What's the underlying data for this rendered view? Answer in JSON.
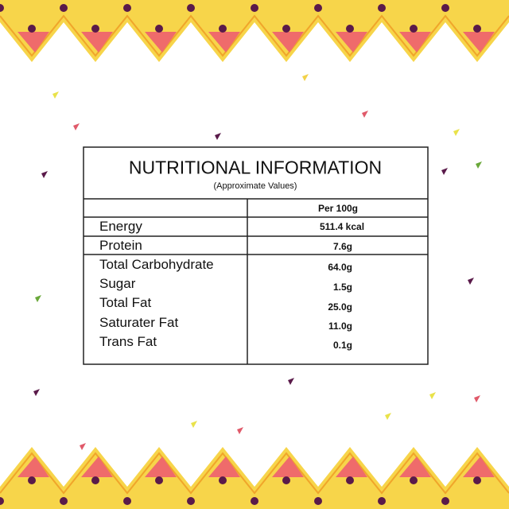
{
  "table": {
    "title": "NUTRITIONAL INFORMATION",
    "subtitle": "(Approximate Values)",
    "column_header": "Per 100g",
    "rows": [
      [
        "Energy",
        "511.4 kcal"
      ],
      [
        "Protein",
        "7.6g"
      ],
      [
        "Total Carbohydrate",
        "64.0g"
      ],
      [
        "Sugar",
        "1.5g"
      ],
      [
        "Total Fat",
        "25.0g"
      ],
      [
        "Saturater Fat",
        "11.0g"
      ],
      [
        "Trans Fat",
        "0.1g"
      ]
    ]
  }
}
